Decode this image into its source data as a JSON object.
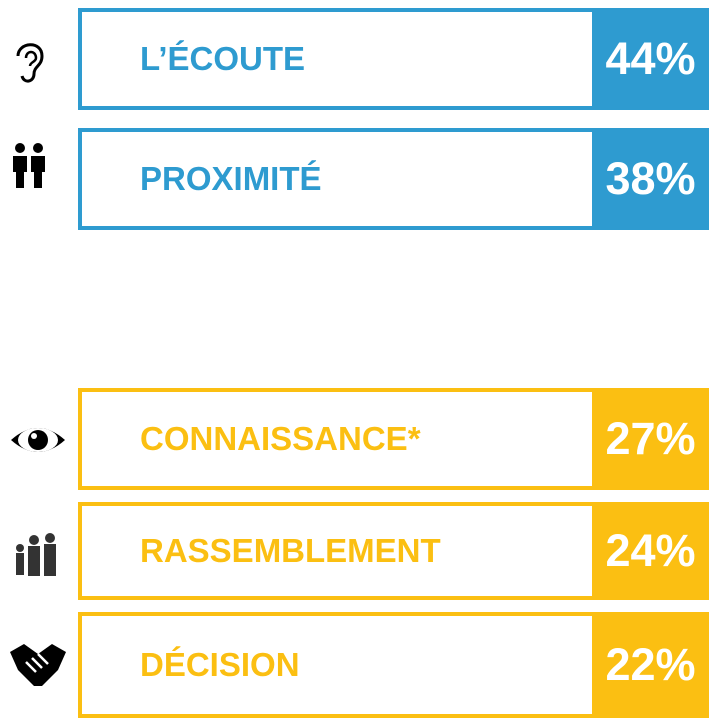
{
  "groups": [
    {
      "color": "#2e9bd0",
      "items": [
        {
          "label": "L’ÉCOUTE",
          "value": "44%"
        },
        {
          "label": "PROXIMITÉ",
          "value": "38%"
        }
      ]
    },
    {
      "color": "#fbbf12",
      "items": [
        {
          "label": "CONNAISSANCE*",
          "value": "27%"
        },
        {
          "label": "RASSEMBLEMENT",
          "value": "24%"
        },
        {
          "label": "DÉCISION",
          "value": "22%"
        }
      ]
    }
  ]
}
